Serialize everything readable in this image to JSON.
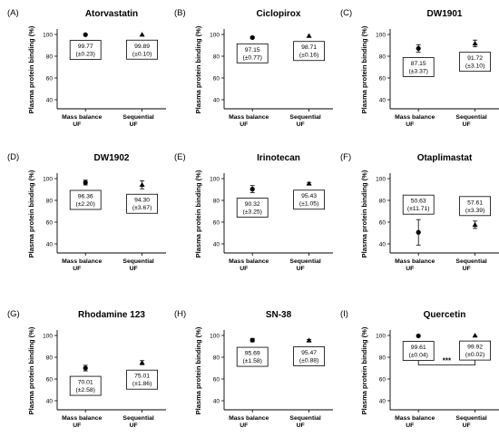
{
  "chart_data": [
    {
      "type": "scatter",
      "panel": "(A)",
      "title": "Atorvastatin",
      "ylabel": "Plasma protein binding (%)",
      "categories": [
        "Mass balance\nUF",
        "Sequential\nUF"
      ],
      "ylim": [
        40,
        100
      ],
      "yticks": [
        40,
        60,
        80,
        100
      ],
      "values": [
        99.77,
        99.89
      ],
      "errors": [
        0.23,
        0.1
      ],
      "labels": [
        [
          "99.77",
          "(±0.23)"
        ],
        [
          "99.89",
          "(±0.10)"
        ]
      ]
    },
    {
      "type": "scatter",
      "panel": "(B)",
      "title": "Ciclopirox",
      "ylabel": "Plasma protein binding (%)",
      "categories": [
        "Mass balance\nUF",
        "Sequential\nUF"
      ],
      "ylim": [
        40,
        100
      ],
      "yticks": [
        40,
        60,
        80,
        100
      ],
      "values": [
        97.15,
        98.71
      ],
      "errors": [
        0.77,
        0.16
      ],
      "labels": [
        [
          "97.15",
          "(±0.77)"
        ],
        [
          "98.71",
          "(±0.16)"
        ]
      ]
    },
    {
      "type": "scatter",
      "panel": "(C)",
      "title": "DW1901",
      "ylabel": "Plasma protein binding (%)",
      "categories": [
        "Mass balance\nUF",
        "Sequential\nUF"
      ],
      "ylim": [
        40,
        100
      ],
      "yticks": [
        40,
        60,
        80,
        100
      ],
      "values": [
        87.15,
        91.72
      ],
      "errors": [
        3.37,
        3.1
      ],
      "labels": [
        [
          "87.15",
          "(±3.37)"
        ],
        [
          "91.72",
          "(±3.10)"
        ]
      ]
    },
    {
      "type": "scatter",
      "panel": "(D)",
      "title": "DW1902",
      "ylabel": "Plasma protein binding (%)",
      "categories": [
        "Mass balance\nUF",
        "Sequential\nUF"
      ],
      "ylim": [
        40,
        100
      ],
      "yticks": [
        40,
        60,
        80,
        100
      ],
      "values": [
        96.36,
        94.3
      ],
      "errors": [
        2.2,
        3.67
      ],
      "labels": [
        [
          "96.36",
          "(±2.20)"
        ],
        [
          "94.30",
          "(±3.67)"
        ]
      ]
    },
    {
      "type": "scatter",
      "panel": "(E)",
      "title": "Irinotecan",
      "ylabel": "Plasma protein binding (%)",
      "categories": [
        "Mass balance\nUF",
        "Sequential\nUF"
      ],
      "ylim": [
        40,
        100
      ],
      "yticks": [
        40,
        60,
        80,
        100
      ],
      "values": [
        90.32,
        95.43
      ],
      "errors": [
        3.25,
        1.05
      ],
      "labels": [
        [
          "90.32",
          "(±3.25)"
        ],
        [
          "95.43",
          "(±1.05)"
        ]
      ]
    },
    {
      "type": "scatter",
      "panel": "(F)",
      "title": "Otaplimastat",
      "ylabel": "Plasma protein binding (%)",
      "categories": [
        "Mass balance\nUF",
        "Sequential\nUF"
      ],
      "ylim": [
        40,
        100
      ],
      "yticks": [
        40,
        60,
        80,
        100
      ],
      "values": [
        50.63,
        57.61
      ],
      "errors": [
        11.71,
        3.39
      ],
      "labels": [
        [
          "50.63",
          "(±11.71)"
        ],
        [
          "57.61",
          "(±3.39)"
        ]
      ]
    },
    {
      "type": "scatter",
      "panel": "(G)",
      "title": "Rhodamine 123",
      "ylabel": "Plasma protein binding (%)",
      "categories": [
        "Mass balance\nUF",
        "Sequential\nUF"
      ],
      "ylim": [
        40,
        100
      ],
      "yticks": [
        40,
        60,
        80,
        100
      ],
      "values": [
        70.01,
        75.01
      ],
      "errors": [
        2.58,
        1.86
      ],
      "labels": [
        [
          "70.01",
          "(±2.58)"
        ],
        [
          "75.01",
          "(±1.86)"
        ]
      ]
    },
    {
      "type": "scatter",
      "panel": "(H)",
      "title": "SN-38",
      "ylabel": "Plasma protein binding (%)",
      "categories": [
        "Mass balance\nUF",
        "Sequential\nUF"
      ],
      "ylim": [
        40,
        100
      ],
      "yticks": [
        40,
        60,
        80,
        100
      ],
      "values": [
        95.69,
        95.47
      ],
      "errors": [
        1.58,
        0.88
      ],
      "labels": [
        [
          "95.69",
          "(±1.58)"
        ],
        [
          "95.47",
          "(±0.88)"
        ]
      ]
    },
    {
      "type": "scatter",
      "panel": "(I)",
      "title": "Quercetin",
      "ylabel": "Plasma protein binding (%)",
      "categories": [
        "Mass balance\nUF",
        "Sequential\nUF"
      ],
      "ylim": [
        40,
        100
      ],
      "yticks": [
        40,
        60,
        80,
        100
      ],
      "values": [
        99.61,
        99.92
      ],
      "errors": [
        0.04,
        0.02
      ],
      "labels": [
        [
          "99.61",
          "(±0.04)"
        ],
        [
          "99.92",
          "(±0.02)"
        ]
      ],
      "significance": "***"
    }
  ]
}
